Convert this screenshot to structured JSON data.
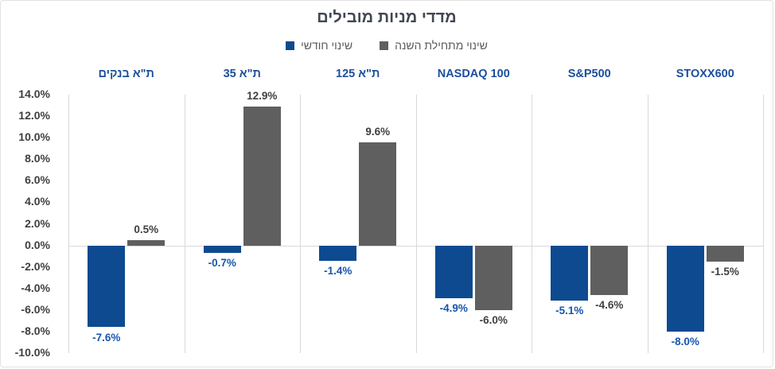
{
  "title": "מדדי מניות מובילים",
  "legend": {
    "items": [
      {
        "name": "monthly-change",
        "label": "שינוי חודשי",
        "color": "#0d4a90"
      },
      {
        "name": "ytd-change",
        "label": "שינוי מתחילת השנה",
        "color": "#5f5f5f"
      }
    ]
  },
  "chart_data": {
    "type": "bar",
    "title": "מדדי מניות מובילים",
    "categories": [
      "ת\"א בנקים",
      "ת\"א 35",
      "ת\"א 125",
      "NASDAQ 100",
      "S&P500",
      "STOXX600"
    ],
    "series": [
      {
        "name": "שינוי חודשי",
        "color": "#0d4a90",
        "label_color": "#1656ac",
        "values": [
          -7.6,
          -0.7,
          -1.4,
          -4.9,
          -5.1,
          -8.0
        ],
        "labels": [
          "-7.6%",
          "-0.7%",
          "-1.4%",
          "-4.9%",
          "-5.1%",
          "-8.0%"
        ]
      },
      {
        "name": "שינוי מתחילת השנה",
        "color": "#5f5f5f",
        "label_color": "#404040",
        "values": [
          0.5,
          12.9,
          9.6,
          -6.0,
          -4.6,
          -1.5
        ],
        "labels": [
          "0.5%",
          "12.9%",
          "9.6%",
          "-6.0%",
          "-4.6%",
          "-1.5%"
        ]
      }
    ],
    "y_axis": {
      "min": -10,
      "max": 14,
      "step": 2,
      "tick_labels": [
        "14.0%",
        "12.0%",
        "10.0%",
        "8.0%",
        "6.0%",
        "4.0%",
        "2.0%",
        "0.0%",
        "-2.0%",
        "-4.0%",
        "-6.0%",
        "-8.0%",
        "-10.0%"
      ]
    },
    "grid": "vertical category separators + zero line, light gray",
    "legend_position": "top-center",
    "colors": {
      "bar_blue": "#0d4a90",
      "bar_gray": "#5f5f5f",
      "label_blue": "#1656ac",
      "label_gray": "#404040",
      "category_blue": "#1c4f9c",
      "tick_gray": "#3f3f3f",
      "gridline": "#d9d9d9",
      "title": "#414753"
    }
  }
}
